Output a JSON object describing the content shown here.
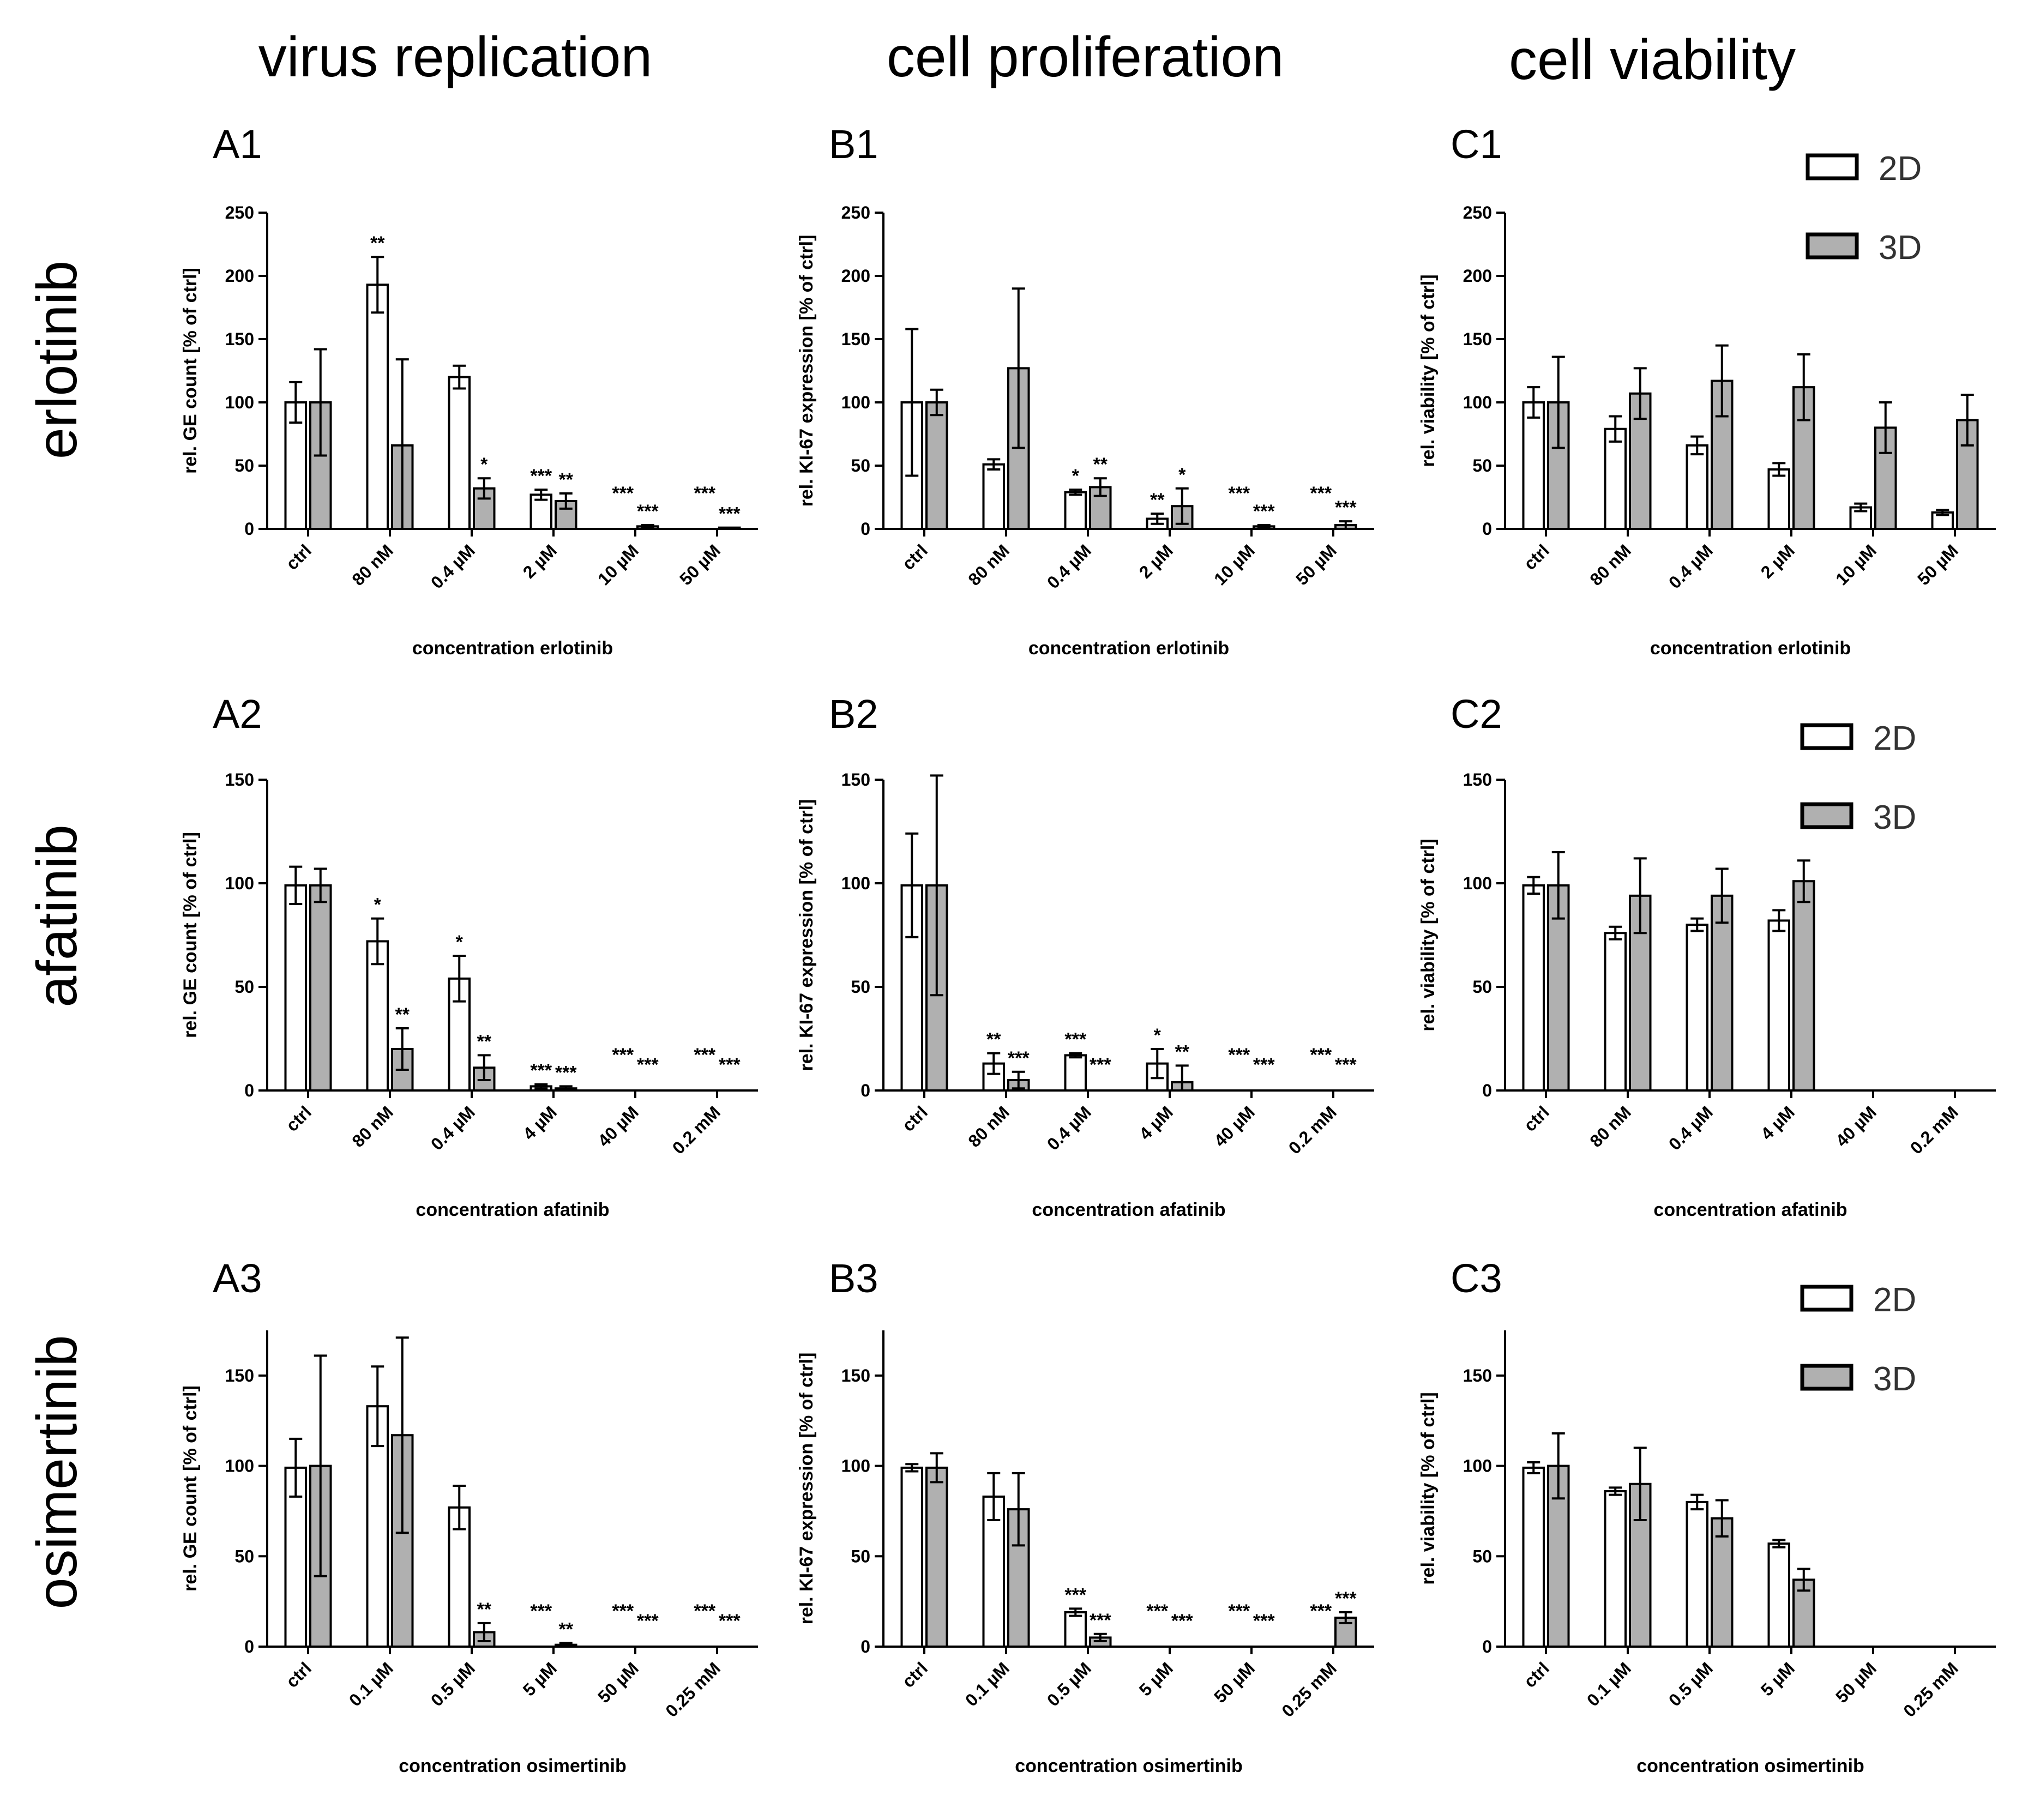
{
  "column_titles": [
    "virus replication",
    "cell proliferation",
    "cell viability"
  ],
  "row_titles": [
    "erlotinib",
    "afatinib",
    "osimertinib"
  ],
  "colors": {
    "bar_2d": "#ffffff",
    "bar_3d": "#b0b0b0",
    "stroke": "#000000"
  },
  "legend": [
    {
      "series": [
        "2D",
        "3D"
      ]
    },
    {
      "series": [
        "2D",
        "3D"
      ]
    },
    {
      "series": [
        "2D",
        "3D"
      ]
    }
  ],
  "chart_data": [
    {
      "id": "A1",
      "type": "bar",
      "row": 0,
      "col": 0,
      "title": "A1",
      "ylabel": "rel. GE count [% of ctrl]",
      "xlabel": "concentration erlotinib",
      "ylim": [
        0,
        250
      ],
      "yticks": [
        0,
        50,
        100,
        150,
        200,
        250
      ],
      "categories": [
        "ctrl",
        "80 nM",
        "0.4 µM",
        "2 µM",
        "10 µM",
        "50 µM"
      ],
      "series": [
        {
          "name": "2D",
          "values": [
            100,
            193,
            120,
            27,
            0,
            0
          ],
          "errors": [
            16,
            22,
            9,
            4,
            0,
            0
          ],
          "sig": [
            "",
            "**",
            "",
            "***",
            "***",
            "***"
          ]
        },
        {
          "name": "3D",
          "values": [
            100,
            66,
            32,
            22,
            2,
            1
          ],
          "errors": [
            42,
            68,
            8,
            6,
            1,
            0
          ],
          "sig": [
            "",
            "",
            "*",
            "**",
            "***",
            "***"
          ]
        }
      ]
    },
    {
      "id": "B1",
      "type": "bar",
      "row": 0,
      "col": 1,
      "title": "B1",
      "ylabel": "rel. KI-67 expression [% of ctrl]",
      "xlabel": "concentration erlotinib",
      "ylim": [
        0,
        250
      ],
      "yticks": [
        0,
        50,
        100,
        150,
        200,
        250
      ],
      "categories": [
        "ctrl",
        "80 nM",
        "0.4 µM",
        "2 µM",
        "10 µM",
        "50 µM"
      ],
      "series": [
        {
          "name": "2D",
          "values": [
            100,
            51,
            29,
            8,
            0,
            0
          ],
          "errors": [
            58,
            4,
            2,
            4,
            0,
            0
          ],
          "sig": [
            "",
            "",
            "*",
            "**",
            "***",
            "***"
          ]
        },
        {
          "name": "3D",
          "values": [
            100,
            127,
            33,
            18,
            2,
            3
          ],
          "errors": [
            10,
            63,
            7,
            14,
            1,
            3
          ],
          "sig": [
            "",
            "",
            "**",
            "*",
            "***",
            "***"
          ]
        }
      ]
    },
    {
      "id": "C1",
      "type": "bar",
      "row": 0,
      "col": 2,
      "title": "C1",
      "ylabel": "rel. viability [% of ctrl]",
      "xlabel": "concentration erlotinib",
      "ylim": [
        0,
        250
      ],
      "yticks": [
        0,
        50,
        100,
        150,
        200,
        250
      ],
      "categories": [
        "ctrl",
        "80 nM",
        "0.4 µM",
        "2 µM",
        "10 µM",
        "50 µM"
      ],
      "series": [
        {
          "name": "2D",
          "values": [
            100,
            79,
            66,
            47,
            17,
            13
          ],
          "errors": [
            12,
            10,
            7,
            5,
            3,
            2
          ],
          "sig": [
            "",
            "",
            "",
            "",
            "",
            ""
          ]
        },
        {
          "name": "3D",
          "values": [
            100,
            107,
            117,
            112,
            80,
            86
          ],
          "errors": [
            36,
            20,
            28,
            26,
            20,
            20
          ],
          "sig": [
            "",
            "",
            "",
            "",
            "",
            ""
          ]
        }
      ]
    },
    {
      "id": "A2",
      "type": "bar",
      "row": 1,
      "col": 0,
      "title": "A2",
      "ylabel": "rel. GE count [% of ctrl]",
      "xlabel": "concentration afatinib",
      "ylim": [
        0,
        150
      ],
      "yticks": [
        0,
        50,
        100,
        150
      ],
      "categories": [
        "ctrl",
        "80 nM",
        "0.4 µM",
        "4 µM",
        "40 µM",
        "0.2 mM"
      ],
      "series": [
        {
          "name": "2D",
          "values": [
            99,
            72,
            54,
            2,
            0,
            0
          ],
          "errors": [
            9,
            11,
            11,
            1,
            0,
            0
          ],
          "sig": [
            "",
            "*",
            "*",
            "***",
            "***",
            "***"
          ]
        },
        {
          "name": "3D",
          "values": [
            99,
            20,
            11,
            1,
            0,
            0
          ],
          "errors": [
            8,
            10,
            6,
            1,
            0,
            0
          ],
          "sig": [
            "",
            "**",
            "**",
            "***",
            "***",
            "***"
          ]
        }
      ]
    },
    {
      "id": "B2",
      "type": "bar",
      "row": 1,
      "col": 1,
      "title": "B2",
      "ylabel": "rel. KI-67 expression [% of ctrl]",
      "xlabel": "concentration afatinib",
      "ylim": [
        0,
        150
      ],
      "yticks": [
        0,
        50,
        100,
        150
      ],
      "categories": [
        "ctrl",
        "80 nM",
        "0.4 µM",
        "4 µM",
        "40 µM",
        "0.2 mM"
      ],
      "series": [
        {
          "name": "2D",
          "values": [
            99,
            13,
            17,
            13,
            0,
            0
          ],
          "errors": [
            25,
            5,
            1,
            7,
            0,
            0
          ],
          "sig": [
            "",
            "**",
            "***",
            "*",
            "***",
            "***"
          ]
        },
        {
          "name": "3D",
          "values": [
            99,
            5,
            0,
            4,
            0,
            0
          ],
          "errors": [
            53,
            4,
            0,
            8,
            0,
            0
          ],
          "sig": [
            "",
            "***",
            "***",
            "**",
            "***",
            "***"
          ]
        }
      ]
    },
    {
      "id": "C2",
      "type": "bar",
      "row": 1,
      "col": 2,
      "title": "C2",
      "ylabel": "rel. viability [% of ctrl]",
      "xlabel": "concentration afatinib",
      "ylim": [
        0,
        150
      ],
      "yticks": [
        0,
        50,
        100,
        150
      ],
      "categories": [
        "ctrl",
        "80 nM",
        "0.4 µM",
        "4 µM",
        "40 µM",
        "0.2 mM"
      ],
      "series": [
        {
          "name": "2D",
          "values": [
            99,
            76,
            80,
            82,
            0,
            0
          ],
          "errors": [
            4,
            3,
            3,
            5,
            0,
            0
          ],
          "sig": [
            "",
            "",
            "",
            "",
            "",
            ""
          ]
        },
        {
          "name": "3D",
          "values": [
            99,
            94,
            94,
            101,
            0,
            0
          ],
          "errors": [
            16,
            18,
            13,
            10,
            0,
            0
          ],
          "sig": [
            "",
            "",
            "",
            "",
            "",
            ""
          ]
        }
      ]
    },
    {
      "id": "A3",
      "type": "bar",
      "row": 2,
      "col": 0,
      "title": "A3",
      "ylabel": "rel. GE count [% of ctrl]",
      "xlabel": "concentration osimertinib",
      "ylim": [
        0,
        175
      ],
      "yticks": [
        0,
        50,
        100,
        150
      ],
      "categories": [
        "ctrl",
        "0.1 µM",
        "0.5 µM",
        "5 µM",
        "50 µM",
        "0.25 mM"
      ],
      "series": [
        {
          "name": "2D",
          "values": [
            99,
            133,
            77,
            0,
            0,
            0
          ],
          "errors": [
            16,
            22,
            12,
            0,
            0,
            0
          ],
          "sig": [
            "",
            "",
            "",
            "***",
            "***",
            "***"
          ]
        },
        {
          "name": "3D",
          "values": [
            100,
            117,
            8,
            1,
            0,
            0
          ],
          "errors": [
            61,
            54,
            5,
            1,
            0,
            0
          ],
          "sig": [
            "",
            "",
            "**",
            "**",
            "***",
            "***"
          ]
        }
      ]
    },
    {
      "id": "B3",
      "type": "bar",
      "row": 2,
      "col": 1,
      "title": "B3",
      "ylabel": "rel. KI-67 expression [% of ctrl]",
      "xlabel": "concentration osimertinib",
      "ylim": [
        0,
        175
      ],
      "yticks": [
        0,
        50,
        100,
        150
      ],
      "categories": [
        "ctrl",
        "0.1 µM",
        "0.5 µM",
        "5 µM",
        "50 µM",
        "0.25 mM"
      ],
      "series": [
        {
          "name": "2D",
          "values": [
            99,
            83,
            19,
            0,
            0,
            0
          ],
          "errors": [
            2,
            13,
            2,
            0,
            0,
            0
          ],
          "sig": [
            "",
            "",
            "***",
            "***",
            "***",
            "***"
          ]
        },
        {
          "name": "3D",
          "values": [
            99,
            76,
            5,
            0,
            0,
            16
          ],
          "errors": [
            8,
            20,
            2,
            0,
            0,
            3
          ],
          "sig": [
            "",
            "",
            "***",
            "***",
            "***",
            "***"
          ]
        }
      ]
    },
    {
      "id": "C3",
      "type": "bar",
      "row": 2,
      "col": 2,
      "title": "C3",
      "ylabel": "rel. viability [% of ctrl]",
      "xlabel": "concentration osimertinib",
      "ylim": [
        0,
        175
      ],
      "yticks": [
        0,
        50,
        100,
        150
      ],
      "categories": [
        "ctrl",
        "0.1 µM",
        "0.5 µM",
        "5 µM",
        "50 µM",
        "0.25 mM"
      ],
      "series": [
        {
          "name": "2D",
          "values": [
            99,
            86,
            80,
            57,
            0,
            0
          ],
          "errors": [
            3,
            2,
            4,
            2,
            0,
            0
          ],
          "sig": [
            "",
            "",
            "",
            "",
            "",
            ""
          ]
        },
        {
          "name": "3D",
          "values": [
            100,
            90,
            71,
            37,
            0,
            0
          ],
          "errors": [
            18,
            20,
            10,
            6,
            0,
            0
          ],
          "sig": [
            "",
            "",
            "",
            "",
            "",
            ""
          ]
        }
      ]
    }
  ]
}
